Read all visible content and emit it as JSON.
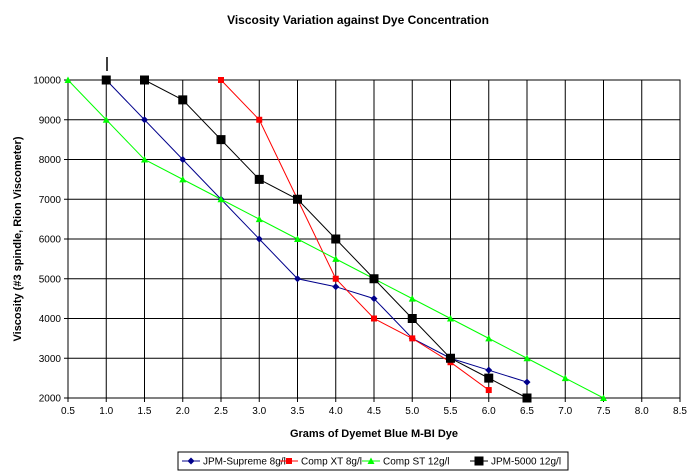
{
  "chart_data": {
    "type": "line",
    "title": "Viscosity Variation against Dye Concentration",
    "xlabel": "Grams of Dyemet Blue M-BI Dye",
    "ylabel": "Viscosity (#3 spindle, Rion Viscometer)",
    "xlim": [
      0.5,
      8.5
    ],
    "ylim": [
      2000,
      10000
    ],
    "xticks": [
      "0.5",
      "1.0",
      "1.5",
      "2.0",
      "2.5",
      "3.0",
      "3.5",
      "4.0",
      "4.5",
      "5.0",
      "5.5",
      "6.0",
      "6.5",
      "7.0",
      "7.5",
      "8.0",
      "8.5"
    ],
    "yticks": [
      "2000",
      "3000",
      "4000",
      "5000",
      "6000",
      "7000",
      "8000",
      "9000",
      "10000"
    ],
    "grid": true,
    "legend_position": "bottom",
    "series": [
      {
        "name": "JPM-Supreme 8g/l",
        "color": "#00008B",
        "marker": "diamond",
        "x": [
          1.0,
          1.5,
          2.0,
          2.5,
          3.0,
          3.5,
          4.0,
          4.5,
          5.0,
          5.5,
          6.0,
          6.5
        ],
        "y": [
          10000,
          9000,
          8000,
          7000,
          6000,
          5000,
          4800,
          4500,
          3500,
          3000,
          2700,
          2400
        ]
      },
      {
        "name": "Comp XT 8g/l",
        "color": "#FF0000",
        "marker": "square",
        "x": [
          2.5,
          3.0,
          3.5,
          4.0,
          4.5,
          5.0,
          5.5,
          6.0
        ],
        "y": [
          10000,
          9000,
          7000,
          5000,
          4000,
          3500,
          2900,
          2200
        ]
      },
      {
        "name": "Comp ST 12g/l",
        "color": "#00FF00",
        "marker": "triangle",
        "x": [
          0.5,
          1.0,
          1.5,
          2.0,
          2.5,
          3.0,
          3.5,
          4.0,
          4.5,
          5.0,
          5.5,
          6.0,
          6.5,
          7.0,
          7.5
        ],
        "y": [
          10000,
          9000,
          8000,
          7500,
          7000,
          6500,
          6000,
          5500,
          5000,
          4500,
          4000,
          3500,
          3000,
          2500,
          2000
        ]
      },
      {
        "name": "JPM-5000 12g/l",
        "color": "#000000",
        "marker": "square-large",
        "x": [
          1.0,
          1.5,
          2.0,
          2.5,
          3.0,
          3.5,
          4.0,
          4.5,
          5.0,
          5.5,
          6.0,
          6.5
        ],
        "y": [
          10000,
          10000,
          9500,
          8500,
          7500,
          7000,
          6000,
          5000,
          4000,
          3000,
          2500,
          2000
        ]
      }
    ]
  }
}
